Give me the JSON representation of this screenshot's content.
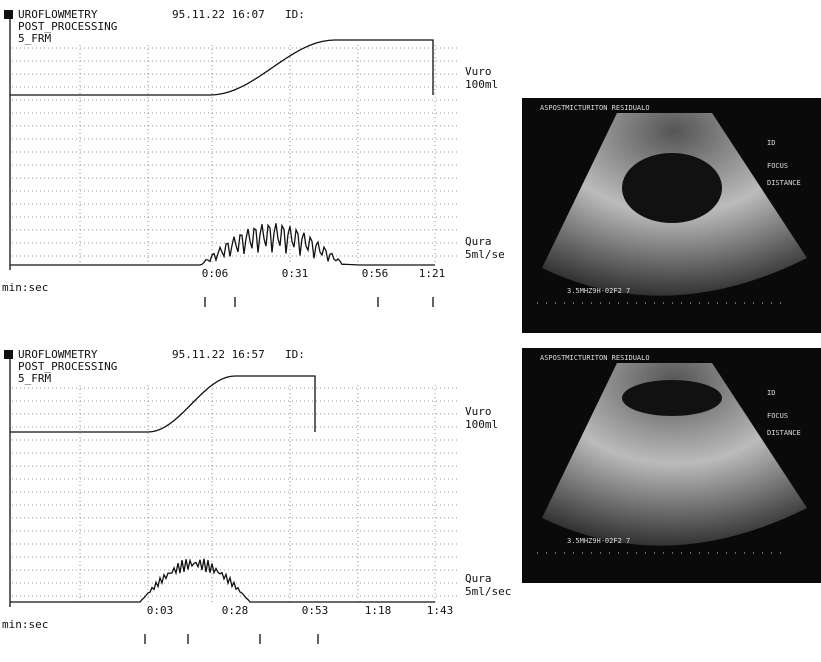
{
  "panels": [
    {
      "header": {
        "line1": "UROFLOWMETRY",
        "line2": "POST_PROCESSING",
        "line3": "5_FRM",
        "datetime": "95.11.22 16:07",
        "id": "ID:"
      },
      "volume_label": {
        "name": "Vuro",
        "scale": "100ml"
      },
      "flow_label": {
        "name": "Qura",
        "scale": "5ml/se"
      },
      "time_labels": [
        "0:06",
        "0:31",
        "0:56",
        "1:21"
      ],
      "time_unit": "min:sec"
    },
    {
      "header": {
        "line1": "UROFLOWMETRY",
        "line2": "POST_PROCESSING",
        "line3": "5_FRM",
        "datetime": "95.11.22 16:57",
        "id": "ID:"
      },
      "volume_label": {
        "name": "Vuro",
        "scale": "100ml"
      },
      "flow_label": {
        "name": "Qura",
        "scale": "5ml/sec"
      },
      "time_labels": [
        "0:03",
        "0:28",
        "0:53",
        "1:18",
        "1:43"
      ],
      "time_unit": "min:sec"
    }
  ],
  "ultrasound": [
    {
      "title": "ASPOSTMICTURITON RESIDUALO",
      "id": "ID",
      "focus": "FOCUS",
      "distance": "DISTANCE",
      "probe": "3.5MHZ9H-02F2 7"
    },
    {
      "title": "ASPOSTMICTURITON RESIDUALO",
      "id": "ID",
      "focus": "FOCUS",
      "distance": "DISTANCE",
      "probe": "3.5MHZ9H-02F2 7"
    }
  ]
}
